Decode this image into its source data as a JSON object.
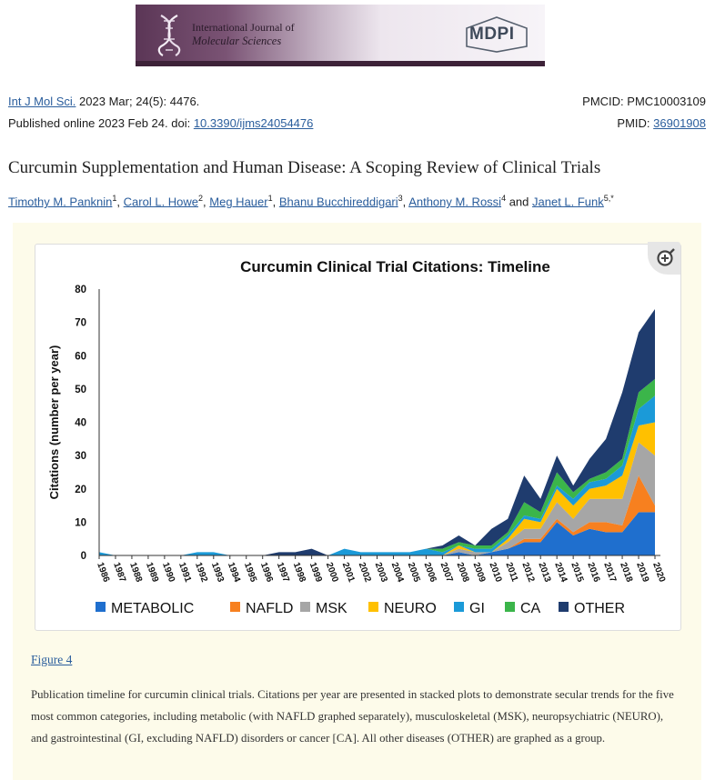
{
  "banner": {
    "journal_line1": "International Journal of",
    "journal_line2": "Molecular Sciences",
    "publisher": "MDPI"
  },
  "citation": {
    "journal_link": "Int J Mol Sci.",
    "volume": "2023 Mar; 24(5): 4476.",
    "published_prefix": "Published online 2023 Feb 24. doi: ",
    "doi": "10.3390/ijms24054476",
    "pmcid": "PMCID: PMC10003109",
    "pmid_label": "PMID: ",
    "pmid": "36901908"
  },
  "article": {
    "title": "Curcumin Supplementation and Human Disease: A Scoping Review of Clinical Trials",
    "authors": [
      {
        "name": "Timothy M. Panknin",
        "sup": "1",
        "sep": ", "
      },
      {
        "name": "Carol L. Howe",
        "sup": "2",
        "sep": ", "
      },
      {
        "name": "Meg Hauer",
        "sup": "1",
        "sep": ", "
      },
      {
        "name": "Bhanu Bucchireddigari",
        "sup": "3",
        "sep": ", "
      },
      {
        "name": "Anthony M. Rossi",
        "sup": "4",
        "sep": " and "
      },
      {
        "name": "Janet L. Funk",
        "sup": "5,*",
        "sep": ""
      }
    ]
  },
  "figure": {
    "link_label": "Figure 4",
    "caption": "Publication timeline for curcumin clinical trials. Citations per year are presented in stacked plots to demonstrate secular trends for the five most common categories, including metabolic (with NAFLD graphed separately), musculoskeletal (MSK), neuropsychiatric (NEURO), and gastrointestinal (GI, excluding NAFLD) disorders or cancer [CA]. All other diseases (OTHER) are graphed as a group.",
    "zoom_icon": "magnify-plus-icon"
  },
  "chart_data": {
    "type": "area",
    "title": "Curcumin Clinical Trial Citations: Timeline",
    "ylabel": "Citations (number per year)",
    "xlabel": "",
    "ylim": [
      0,
      80
    ],
    "yticks": [
      0,
      10,
      20,
      30,
      40,
      50,
      60,
      70,
      80
    ],
    "grid": false,
    "legend_position": "bottom",
    "x": [
      "1986",
      "1987",
      "1988",
      "1989",
      "1990",
      "1991",
      "1992",
      "1993",
      "1994",
      "1995",
      "1996",
      "1997",
      "1998",
      "1999",
      "2000",
      "2001",
      "2002",
      "2003",
      "2004",
      "2005",
      "2006",
      "2007",
      "2008",
      "2009",
      "2010",
      "2011",
      "2012",
      "2013",
      "2014",
      "2015",
      "2016",
      "2017",
      "2018",
      "2019",
      "2020"
    ],
    "series": [
      {
        "name": "METABOLIC",
        "color": "#1f6fce",
        "values": [
          0,
          0,
          0,
          0,
          0,
          0,
          0,
          0,
          0,
          0,
          0,
          0,
          0,
          0,
          0,
          0,
          0,
          0,
          0,
          0,
          0,
          0,
          1,
          0,
          1,
          2,
          4,
          4,
          10,
          6,
          8,
          7,
          7,
          13,
          13
        ]
      },
      {
        "name": "NAFLD",
        "color": "#f7801f",
        "values": [
          0,
          0,
          0,
          0,
          0,
          0,
          0,
          0,
          0,
          0,
          0,
          0,
          0,
          0,
          0,
          0,
          0,
          0,
          0,
          0,
          0,
          0,
          0,
          0,
          0,
          0,
          1,
          1,
          1,
          1,
          2,
          3,
          2,
          11,
          2
        ]
      },
      {
        "name": "MSK",
        "color": "#a6a6a6",
        "values": [
          0,
          0,
          0,
          0,
          0,
          0,
          0,
          0,
          0,
          0,
          0,
          0,
          0,
          0,
          0,
          0,
          0,
          0,
          0,
          0,
          0,
          0,
          1,
          1,
          0,
          2,
          3,
          3,
          5,
          4,
          7,
          7,
          8,
          10,
          15
        ]
      },
      {
        "name": "NEURO",
        "color": "#ffc000",
        "values": [
          0,
          0,
          0,
          0,
          0,
          0,
          0,
          0,
          0,
          0,
          0,
          0,
          0,
          0,
          0,
          0,
          0,
          0,
          0,
          0,
          0,
          0,
          1,
          0,
          0,
          1,
          3,
          2,
          4,
          4,
          3,
          4,
          7,
          5,
          10
        ]
      },
      {
        "name": "GI",
        "color": "#1b9ad8",
        "values": [
          1,
          0,
          0,
          0,
          0,
          0,
          1,
          1,
          0,
          0,
          0,
          0,
          0,
          0,
          0,
          2,
          1,
          1,
          1,
          1,
          2,
          1,
          0,
          1,
          1,
          1,
          1,
          1,
          1,
          2,
          2,
          2,
          3,
          5,
          8
        ]
      },
      {
        "name": "CA",
        "color": "#3bb54a",
        "values": [
          0,
          0,
          0,
          0,
          0,
          0,
          0,
          0,
          0,
          0,
          0,
          0,
          0,
          0,
          0,
          0,
          0,
          0,
          0,
          0,
          0,
          1,
          1,
          1,
          1,
          1,
          4,
          2,
          4,
          2,
          1,
          2,
          2,
          5,
          5
        ]
      },
      {
        "name": "OTHER",
        "color": "#1f3c6e",
        "values": [
          0,
          0,
          0,
          0,
          0,
          0,
          0,
          0,
          0,
          0,
          0,
          1,
          1,
          2,
          0,
          0,
          0,
          0,
          0,
          0,
          0,
          1,
          2,
          0,
          5,
          4,
          8,
          4,
          5,
          2,
          6,
          10,
          20,
          18,
          21
        ]
      }
    ]
  }
}
